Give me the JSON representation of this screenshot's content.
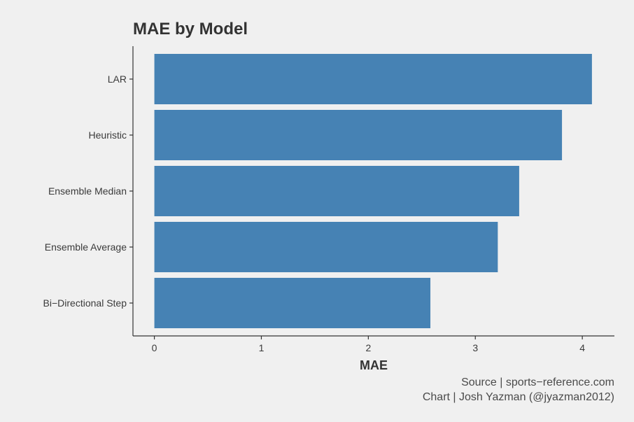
{
  "chart_data": {
    "type": "bar",
    "orientation": "horizontal",
    "title": "MAE by Model",
    "xlabel": "MAE",
    "ylabel": "",
    "categories": [
      "LAR",
      "Heuristic",
      "Ensemble Median",
      "Ensemble Average",
      "Bi−Directional Step"
    ],
    "values": [
      4.09,
      3.81,
      3.41,
      3.21,
      2.58
    ],
    "xlim": [
      -0.2,
      4.3
    ],
    "x_ticks": [
      "0",
      "1",
      "2",
      "3",
      "4"
    ],
    "bar_color": "#4682b4",
    "background_color": "#f0f0f0",
    "grid": false,
    "legend": "none"
  },
  "caption": {
    "source": "Source | sports−reference.com",
    "chart_credit": "Chart | Josh Yazman (@jyazman2012)"
  }
}
